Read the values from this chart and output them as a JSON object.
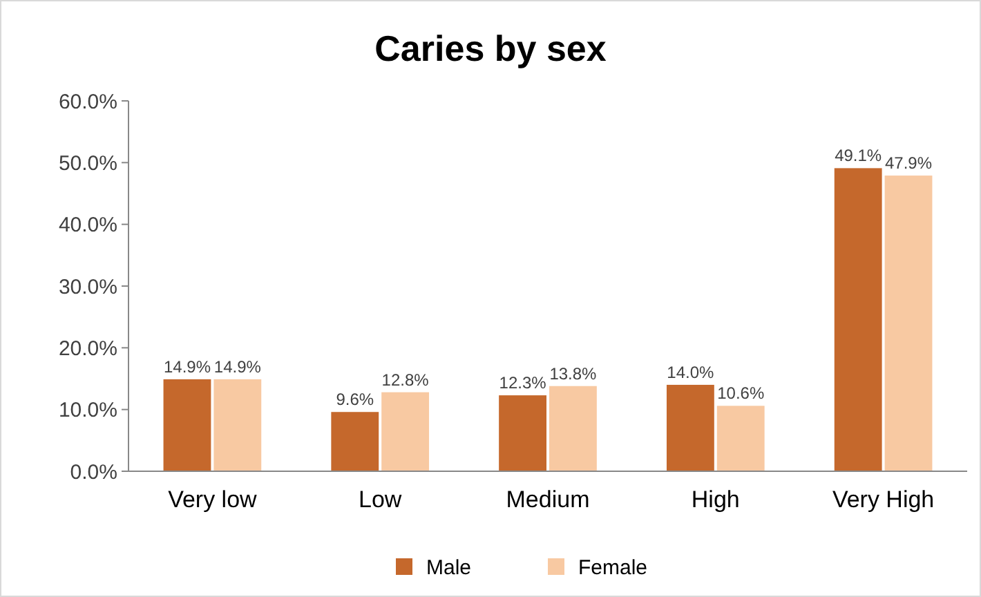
{
  "chart_data": {
    "type": "bar",
    "title": "Caries by sex",
    "categories": [
      "Very low",
      "Low",
      "Medium",
      "High",
      "Very High"
    ],
    "series": [
      {
        "name": "Male",
        "color": "#c5682c",
        "values": [
          14.9,
          9.6,
          12.3,
          14.0,
          49.1
        ],
        "value_labels": [
          "14.9%",
          "9.6%",
          "12.3%",
          "14.0%",
          "49.1%"
        ]
      },
      {
        "name": "Female",
        "color": "#f8c9a2",
        "values": [
          14.9,
          12.8,
          13.8,
          10.6,
          47.9
        ],
        "value_labels": [
          "14.9%",
          "12.8%",
          "13.8%",
          "10.6%",
          "47.9%"
        ]
      }
    ],
    "ylim": [
      0,
      60
    ],
    "yticks": [
      {
        "value": 0,
        "label": "0.0%"
      },
      {
        "value": 10,
        "label": "10.0%"
      },
      {
        "value": 20,
        "label": "20.0%"
      },
      {
        "value": 30,
        "label": "30.0%"
      },
      {
        "value": 40,
        "label": "40.0%"
      },
      {
        "value": 50,
        "label": "50.0%"
      },
      {
        "value": 60,
        "label": "60.0%"
      }
    ],
    "grid": false,
    "legend": "bottom"
  }
}
